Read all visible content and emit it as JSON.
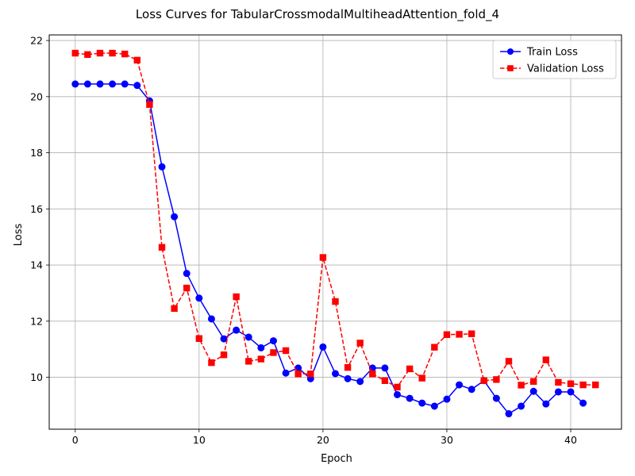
{
  "chart_data": {
    "type": "line",
    "title": "Loss Curves for TabularCrossmodalMultiheadAttention_fold_4",
    "xlabel": "Epoch",
    "ylabel": "Loss",
    "xlim": [
      -2.1,
      44.1
    ],
    "ylim": [
      8.15,
      22.2
    ],
    "xticks": [
      0,
      10,
      20,
      30,
      40
    ],
    "yticks": [
      10,
      12,
      14,
      16,
      18,
      20,
      22
    ],
    "grid": true,
    "legend_position": "top-right",
    "series": [
      {
        "name": "Train Loss",
        "color": "#0000ff",
        "line_style": "solid",
        "marker": "circle",
        "x": [
          0,
          1,
          2,
          3,
          4,
          5,
          6,
          7,
          8,
          9,
          10,
          11,
          12,
          13,
          14,
          15,
          16,
          17,
          18,
          19,
          20,
          21,
          22,
          23,
          24,
          25,
          26,
          27,
          28,
          29,
          30,
          31,
          32,
          33,
          34,
          35,
          36,
          37,
          38,
          39,
          40,
          41
        ],
        "values": [
          20.45,
          20.45,
          20.45,
          20.45,
          20.45,
          20.4,
          19.85,
          17.5,
          15.72,
          13.7,
          12.82,
          12.08,
          11.37,
          11.68,
          11.43,
          11.05,
          11.3,
          10.15,
          10.33,
          9.95,
          11.08,
          10.13,
          9.95,
          9.85,
          10.33,
          10.33,
          9.38,
          9.25,
          9.08,
          8.97,
          9.22,
          9.73,
          9.57,
          9.88,
          9.25,
          8.7,
          8.97,
          9.5,
          9.05,
          9.48,
          9.48,
          9.08
        ]
      },
      {
        "name": "Validation Loss",
        "color": "#ff0000",
        "line_style": "dashed",
        "marker": "square",
        "x": [
          0,
          1,
          2,
          3,
          4,
          5,
          6,
          7,
          8,
          9,
          10,
          11,
          12,
          13,
          14,
          15,
          16,
          17,
          18,
          19,
          20,
          21,
          22,
          23,
          24,
          25,
          26,
          27,
          28,
          29,
          30,
          31,
          32,
          33,
          34,
          35,
          36,
          37,
          38,
          39,
          40,
          41,
          42
        ],
        "values": [
          21.55,
          21.5,
          21.55,
          21.55,
          21.52,
          21.3,
          19.72,
          14.63,
          12.45,
          13.18,
          11.38,
          10.52,
          10.8,
          12.87,
          10.57,
          10.65,
          10.88,
          10.95,
          10.12,
          10.12,
          14.27,
          12.7,
          10.35,
          11.22,
          10.12,
          9.88,
          9.65,
          10.3,
          9.97,
          11.07,
          11.52,
          11.53,
          11.55,
          9.88,
          9.92,
          10.57,
          9.72,
          9.85,
          10.62,
          9.82,
          9.77,
          9.73,
          9.73
        ]
      }
    ]
  }
}
